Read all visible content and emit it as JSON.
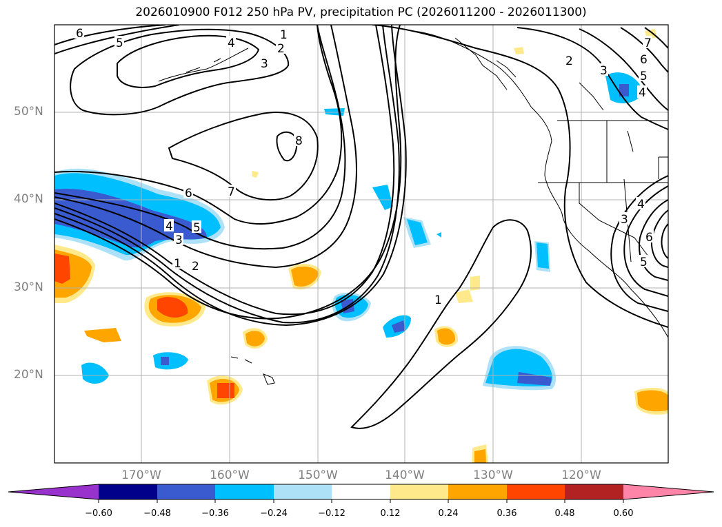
{
  "title": "2026010900 F012 250 hPa PV, precipitation PC (2026011200 - 2026011300)",
  "lat_labels": [
    "50°N",
    "40°N",
    "30°N",
    "20°N"
  ],
  "lon_labels": [
    "170°W",
    "160°W",
    "150°W",
    "140°W",
    "130°W",
    "120°W"
  ],
  "pv_contour_labels": [
    "1",
    "2",
    "3",
    "4",
    "5",
    "6",
    "7",
    "8",
    "1",
    "2",
    "3",
    "4",
    "5",
    "6",
    "7",
    "6",
    "5",
    "4",
    "3",
    "2",
    "1",
    "3",
    "4",
    "5",
    "6"
  ],
  "colorbar": {
    "tick_labels": [
      "−0.60",
      "−0.48",
      "−0.36",
      "−0.24",
      "−0.12",
      "0.12",
      "0.24",
      "0.36",
      "0.48",
      "0.60"
    ],
    "colors": [
      "#9932cc",
      "#00008b",
      "#3a5bd0",
      "#00bfff",
      "#ade1f8",
      "#ffffff",
      "#ffe98a",
      "#ffa500",
      "#ff4500",
      "#b22222",
      "#ff85a8"
    ]
  }
}
